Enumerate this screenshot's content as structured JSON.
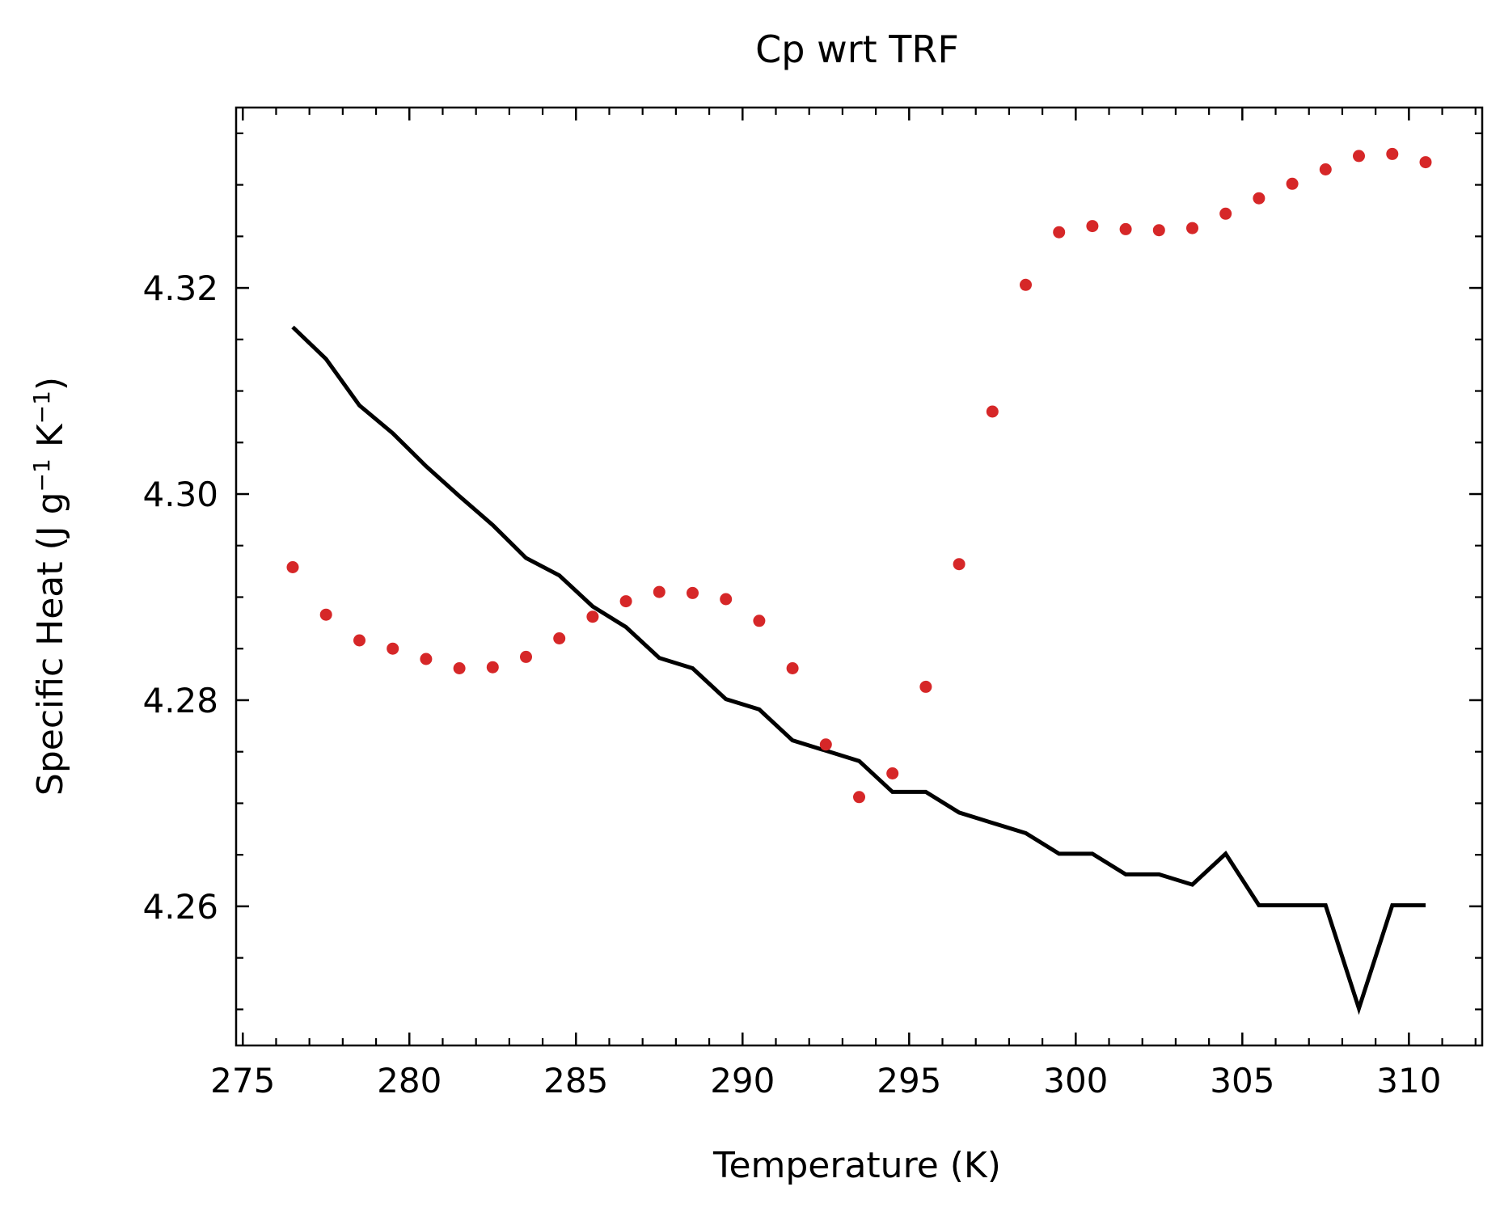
{
  "chart_data": {
    "type": "line",
    "title": "Cp wrt TRF",
    "xlabel": "Temperature (K)",
    "ylabel": {
      "text_before_g": "Specific Heat (J g",
      "sup_1": "−1",
      "text_before_K": " K",
      "sup_2": "−1",
      "text_after": ")"
    },
    "xlim": [
      274.8,
      312.2
    ],
    "ylim": [
      4.2465,
      4.3375
    ],
    "x_major_ticks": [
      275,
      280,
      285,
      290,
      295,
      300,
      305,
      310
    ],
    "x_tick_labels": [
      "275",
      "280",
      "285",
      "290",
      "295",
      "300",
      "305",
      "310"
    ],
    "x_minor_step": 1,
    "y_major_ticks": [
      4.26,
      4.28,
      4.3,
      4.32
    ],
    "y_tick_labels": [
      "4.26",
      "4.28",
      "4.30",
      "4.32"
    ],
    "y_minor_step": 0.005,
    "grid": false,
    "series": [
      {
        "kind": "line",
        "color": "#000000",
        "x": [
          276.5,
          277.5,
          278.5,
          279.5,
          280.5,
          281.5,
          282.5,
          283.5,
          284.5,
          285.5,
          286.5,
          287.5,
          288.5,
          289.5,
          290.5,
          291.5,
          292.5,
          293.5,
          294.5,
          295.5,
          296.5,
          297.5,
          298.5,
          299.5,
          300.5,
          301.5,
          302.5,
          303.5,
          304.5,
          305.5,
          306.5,
          307.5,
          308.5,
          309.5,
          310.5
        ],
        "y": [
          4.3162,
          4.3131,
          4.3086,
          4.3059,
          4.3027,
          4.2998,
          4.297,
          4.2938,
          4.2921,
          4.2891,
          4.2871,
          4.2841,
          4.2831,
          4.2801,
          4.2791,
          4.2761,
          4.2751,
          4.2741,
          4.2711,
          4.2711,
          4.2691,
          4.2681,
          4.2671,
          4.2651,
          4.2651,
          4.2631,
          4.2631,
          4.2621,
          4.2651,
          4.2601,
          4.2601,
          4.2601,
          4.2501,
          4.2601,
          4.2601
        ]
      },
      {
        "kind": "scatter",
        "color": "#d62728",
        "x": [
          276.5,
          277.5,
          278.5,
          279.5,
          280.5,
          281.5,
          282.5,
          283.5,
          284.5,
          285.5,
          286.5,
          287.5,
          288.5,
          289.5,
          290.5,
          291.5,
          292.5,
          293.5,
          294.5,
          295.5,
          296.5,
          297.5,
          298.5,
          299.5,
          300.5,
          301.5,
          302.5,
          303.5,
          304.5,
          305.5,
          306.5,
          307.5,
          308.5,
          309.5,
          310.5
        ],
        "y": [
          4.2929,
          4.2883,
          4.2858,
          4.285,
          4.284,
          4.2831,
          4.2832,
          4.2842,
          4.286,
          4.2881,
          4.2896,
          4.2905,
          4.2904,
          4.2898,
          4.2877,
          4.2831,
          4.2757,
          4.2706,
          4.2729,
          4.2813,
          4.2932,
          4.308,
          4.3203,
          4.3254,
          4.326,
          4.3257,
          4.3256,
          4.3258,
          4.3272,
          4.3287,
          4.3301,
          4.3315,
          4.3328,
          4.333,
          4.3322
        ]
      }
    ]
  }
}
